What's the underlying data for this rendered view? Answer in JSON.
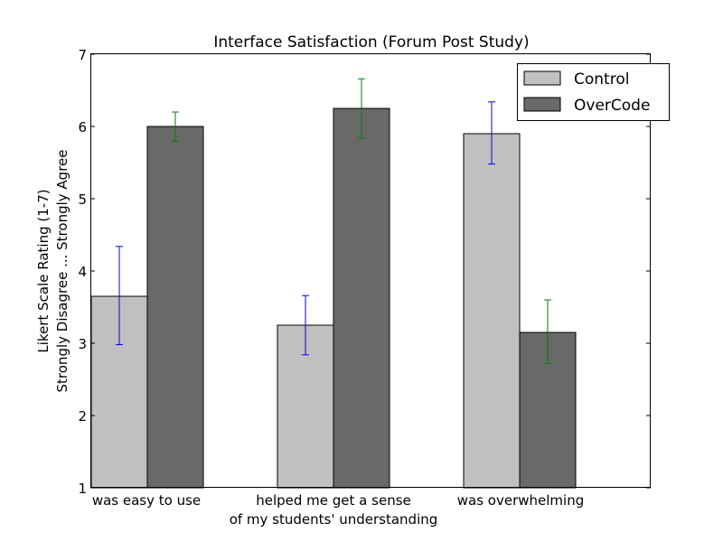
{
  "chart_data": {
    "type": "bar",
    "title": "Interface Satisfaction (Forum Post Study)",
    "ylabel_lines": [
      "Likert Scale Rating (1-7)",
      "Strongly Disagree ... Strongly Agree"
    ],
    "xlabel": "",
    "categories": [
      [
        "was easy to use"
      ],
      [
        "helped me get a sense",
        "of my students' understanding"
      ],
      [
        "was overwhelming"
      ]
    ],
    "series": [
      {
        "name": "Control",
        "color": "#c0c0c0",
        "error_color": "#0000ff",
        "values": [
          3.65,
          3.25,
          5.9
        ],
        "error_low": [
          2.98,
          2.84,
          5.48
        ],
        "error_high": [
          4.34,
          3.66,
          6.34
        ]
      },
      {
        "name": "OverCode",
        "color": "#696969",
        "error_color": "#008000",
        "values": [
          6.0,
          6.25,
          3.15
        ],
        "error_low": [
          5.79,
          5.84,
          2.72
        ],
        "error_high": [
          6.2,
          6.66,
          3.6
        ]
      }
    ],
    "yticks": [
      "1",
      "2",
      "3",
      "4",
      "5",
      "6",
      "7"
    ],
    "ylim": [
      1,
      7
    ],
    "grid": false,
    "legend_position": "top-right"
  }
}
